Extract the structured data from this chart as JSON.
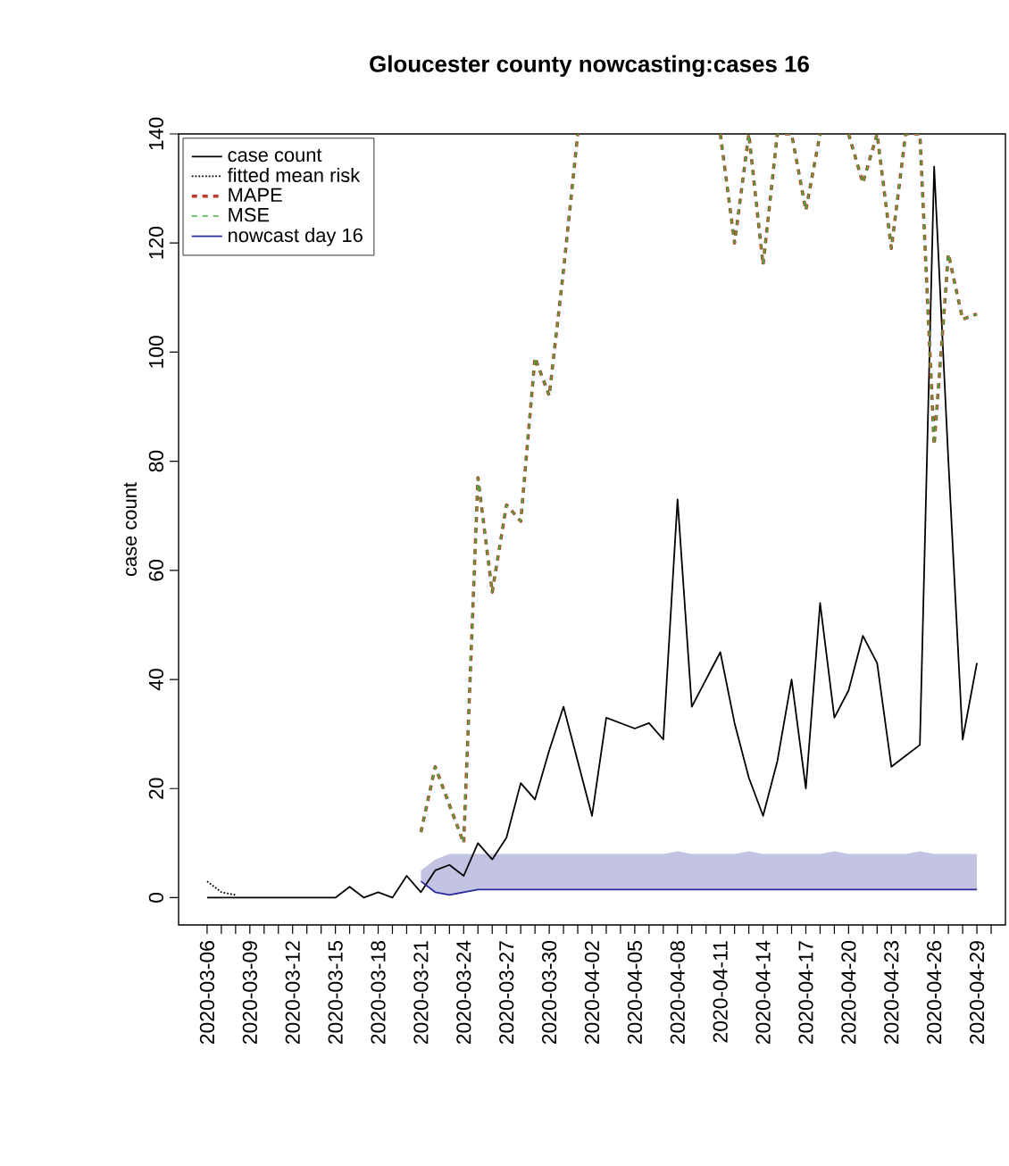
{
  "chart_data": {
    "type": "line",
    "title": "Gloucester county nowcasting:cases  16",
    "ylabel": "case count",
    "x": [
      "2020-03-06",
      "2020-03-07",
      "2020-03-08",
      "2020-03-09",
      "2020-03-10",
      "2020-03-11",
      "2020-03-12",
      "2020-03-13",
      "2020-03-14",
      "2020-03-15",
      "2020-03-16",
      "2020-03-17",
      "2020-03-18",
      "2020-03-19",
      "2020-03-20",
      "2020-03-21",
      "2020-03-22",
      "2020-03-23",
      "2020-03-24",
      "2020-03-25",
      "2020-03-26",
      "2020-03-27",
      "2020-03-28",
      "2020-03-29",
      "2020-03-30",
      "2020-03-31",
      "2020-04-01",
      "2020-04-02",
      "2020-04-03",
      "2020-04-04",
      "2020-04-05",
      "2020-04-06",
      "2020-04-07",
      "2020-04-08",
      "2020-04-09",
      "2020-04-10",
      "2020-04-11",
      "2020-04-12",
      "2020-04-13",
      "2020-04-14",
      "2020-04-15",
      "2020-04-16",
      "2020-04-17",
      "2020-04-18",
      "2020-04-19",
      "2020-04-20",
      "2020-04-21",
      "2020-04-22",
      "2020-04-23",
      "2020-04-24",
      "2020-04-25",
      "2020-04-26",
      "2020-04-27",
      "2020-04-28",
      "2020-04-29"
    ],
    "series": [
      {
        "name": "case count",
        "color": "#000000",
        "line_style": "solid",
        "values": [
          0,
          0,
          0,
          0,
          0,
          0,
          0,
          0,
          0,
          0,
          2,
          0,
          1,
          0,
          4,
          1,
          5,
          6,
          4,
          10,
          7,
          11,
          21,
          18,
          27,
          35,
          25,
          15,
          33,
          32,
          31,
          32,
          29,
          73,
          35,
          40,
          45,
          32,
          22,
          15,
          25,
          40,
          20,
          54,
          33,
          38,
          48,
          43,
          24,
          26,
          28,
          134,
          80,
          29,
          43
        ]
      },
      {
        "name": "fitted mean risk",
        "color": "#000000",
        "line_style": "dotted",
        "x": [
          "2020-03-06",
          "2020-03-07",
          "2020-03-08"
        ],
        "values": [
          3,
          1,
          0.5
        ]
      },
      {
        "name": "MAPE",
        "color": "#c0392b",
        "line_style": "dashed",
        "values": [
          null,
          null,
          null,
          null,
          null,
          null,
          null,
          null,
          null,
          null,
          null,
          null,
          null,
          null,
          null,
          12,
          24,
          17,
          10,
          77,
          56,
          72,
          69,
          99,
          92,
          115,
          140,
          null,
          null,
          null,
          null,
          null,
          null,
          null,
          null,
          null,
          140,
          120,
          140,
          116,
          140,
          140,
          126,
          140,
          null,
          140,
          131,
          140,
          119,
          140,
          140,
          83,
          118,
          106,
          107
        ]
      },
      {
        "name": "MSE",
        "color": "#3cb43c",
        "line_style": "dashed",
        "values": [
          null,
          null,
          null,
          null,
          null,
          null,
          null,
          null,
          null,
          null,
          null,
          null,
          null,
          null,
          null,
          12,
          24,
          17,
          10,
          77,
          56,
          72,
          69,
          99,
          92,
          115,
          140,
          null,
          null,
          null,
          null,
          null,
          null,
          null,
          null,
          null,
          140,
          120,
          140,
          116,
          140,
          140,
          126,
          140,
          null,
          140,
          131,
          140,
          119,
          140,
          140,
          83,
          118,
          106,
          107
        ]
      },
      {
        "name": "nowcast day 16",
        "color": "#2a2a9a",
        "line_style": "solid",
        "x": [
          "2020-03-21",
          "2020-03-22",
          "2020-03-23",
          "2020-03-24",
          "2020-03-25",
          "2020-03-26",
          "2020-03-27",
          "2020-03-28",
          "2020-03-29",
          "2020-03-30",
          "2020-03-31",
          "2020-04-01",
          "2020-04-02",
          "2020-04-03",
          "2020-04-04",
          "2020-04-05",
          "2020-04-06",
          "2020-04-07",
          "2020-04-08",
          "2020-04-09",
          "2020-04-10",
          "2020-04-11",
          "2020-04-12",
          "2020-04-13",
          "2020-04-14",
          "2020-04-15",
          "2020-04-16",
          "2020-04-17",
          "2020-04-18",
          "2020-04-19",
          "2020-04-20",
          "2020-04-21",
          "2020-04-22",
          "2020-04-23",
          "2020-04-24",
          "2020-04-25",
          "2020-04-26",
          "2020-04-27",
          "2020-04-28",
          "2020-04-29"
        ],
        "values": [
          3,
          1,
          0.5,
          1,
          1.5,
          1.5,
          1.5,
          1.5,
          1.5,
          1.5,
          1.5,
          1.5,
          1.5,
          1.5,
          1.5,
          1.5,
          1.5,
          1.5,
          1.5,
          1.5,
          1.5,
          1.5,
          1.5,
          1.5,
          1.5,
          1.5,
          1.5,
          1.5,
          1.5,
          1.5,
          1.5,
          1.5,
          1.5,
          1.5,
          1.5,
          1.5,
          1.5,
          1.5,
          1.5,
          1.5
        ],
        "lower": [
          3,
          1,
          0.5,
          1,
          1.5,
          1.5,
          1.5,
          1.5,
          1.5,
          1.5,
          1.5,
          1.5,
          1.5,
          1.5,
          1.5,
          1.5,
          1.5,
          1.5,
          1.5,
          1.5,
          1.5,
          1.5,
          1.5,
          1.5,
          1.5,
          1.5,
          1.5,
          1.5,
          1.5,
          1.5,
          1.5,
          1.5,
          1.5,
          1.5,
          1.5,
          1.5,
          1.5,
          1.5,
          1.5,
          1.5
        ],
        "upper": [
          5,
          7,
          8,
          8,
          8,
          8,
          8,
          8,
          8,
          8,
          8,
          8,
          8,
          8,
          8,
          8,
          8,
          8,
          8.5,
          8,
          8,
          8,
          8,
          8.5,
          8,
          8,
          8,
          8,
          8,
          8.5,
          8,
          8,
          8,
          8,
          8,
          8.5,
          8,
          8,
          8,
          8
        ]
      }
    ],
    "xlim": [
      "2020-03-04",
      "2020-05-01"
    ],
    "ylim": [
      -5,
      140
    ],
    "yticks": [
      0,
      20,
      40,
      60,
      80,
      100,
      120,
      140
    ],
    "xticks": [
      "2020-03-06",
      {
        "value": "2020-03-07",
        "label": null
      },
      {
        "value": "2020-03-08",
        "label": null
      },
      "2020-03-09",
      {
        "value": "2020-03-10",
        "label": null
      },
      {
        "value": "2020-03-11",
        "label": null
      },
      "2020-03-12",
      {
        "value": "2020-03-13",
        "label": null
      },
      {
        "value": "2020-03-14",
        "label": null
      },
      "2020-03-15",
      {
        "value": "2020-03-16",
        "label": null
      },
      {
        "value": "2020-03-17",
        "label": null
      },
      "2020-03-18",
      {
        "value": "2020-03-19",
        "label": null
      },
      {
        "value": "2020-03-20",
        "label": null
      },
      "2020-03-21",
      {
        "value": "2020-03-22",
        "label": null
      },
      {
        "value": "2020-03-23",
        "label": null
      },
      "2020-03-24",
      {
        "value": "2020-03-25",
        "label": null
      },
      {
        "value": "2020-03-26",
        "label": null
      },
      "2020-03-27",
      {
        "value": "2020-03-28",
        "label": null
      },
      {
        "value": "2020-03-29",
        "label": null
      },
      "2020-03-30",
      {
        "value": "2020-03-31",
        "label": null
      },
      {
        "value": "2020-04-01",
        "label": null
      },
      "2020-04-02",
      {
        "value": "2020-04-03",
        "label": null
      },
      {
        "value": "2020-04-04",
        "label": null
      },
      "2020-04-05",
      {
        "value": "2020-04-06",
        "label": null
      },
      {
        "value": "2020-04-07",
        "label": null
      },
      "2020-04-08",
      {
        "value": "2020-04-09",
        "label": null
      },
      {
        "value": "2020-04-10",
        "label": null
      },
      "2020-04-11",
      {
        "value": "2020-04-12",
        "label": null
      },
      {
        "value": "2020-04-13",
        "label": null
      },
      "2020-04-14",
      {
        "value": "2020-04-15",
        "label": null
      },
      {
        "value": "2020-04-16",
        "label": null
      },
      "2020-04-17",
      {
        "value": "2020-04-18",
        "label": null
      },
      {
        "value": "2020-04-19",
        "label": null
      },
      "2020-04-20",
      {
        "value": "2020-04-21",
        "label": null
      },
      {
        "value": "2020-04-22",
        "label": null
      },
      "2020-04-23",
      {
        "value": "2020-04-24",
        "label": null
      },
      {
        "value": "2020-04-25",
        "label": null
      },
      "2020-04-26",
      {
        "value": "2020-04-27",
        "label": null
      },
      {
        "value": "2020-04-28",
        "label": null
      },
      "2020-04-29",
      {
        "value": "2020-04-30",
        "label": null
      }
    ],
    "legend": "top left",
    "grid": false
  }
}
